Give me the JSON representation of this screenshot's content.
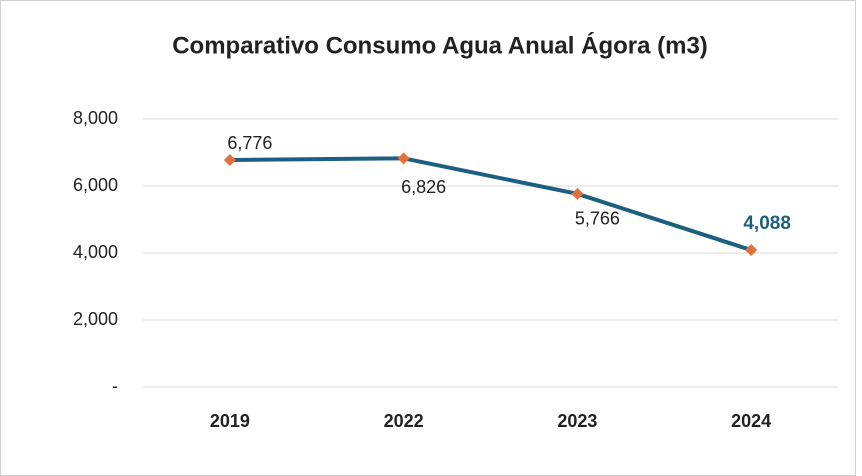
{
  "chart_data": {
    "type": "line",
    "title": "Comparativo Consumo Agua Anual Ágora  (m3)",
    "categories": [
      "2019",
      "2022",
      "2023",
      "2024"
    ],
    "values": [
      6776,
      6826,
      5766,
      4088
    ],
    "value_labels": [
      "6,776",
      "6,826",
      "5,766",
      "4,088"
    ],
    "color": "#1d5f80",
    "marker_color": "#e2703a",
    "ylim": [
      0,
      8000
    ],
    "yticks": [
      {
        "value": 0,
        "label": "-"
      },
      {
        "value": 2000,
        "label": "2,000"
      },
      {
        "value": 4000,
        "label": "4,000"
      },
      {
        "value": 6000,
        "label": "6,000"
      },
      {
        "value": 8000,
        "label": "8,000"
      }
    ],
    "grid": true
  }
}
